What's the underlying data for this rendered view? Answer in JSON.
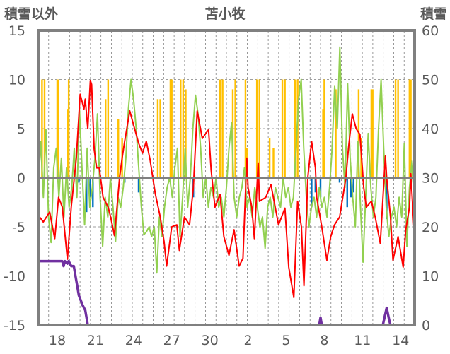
{
  "chart_data": {
    "type": "line",
    "title": "苫小牧",
    "ylabel_left": "積雪以外",
    "ylabel_right": "積雪",
    "ylim_left": [
      -15,
      15
    ],
    "ylim_right": [
      0,
      60
    ],
    "yticks_left": [
      "15",
      "10",
      "5",
      "0",
      "-5",
      "-10",
      "-15"
    ],
    "yticks_right": [
      "60",
      "50",
      "40",
      "30",
      "20",
      "10",
      "0"
    ],
    "x_unit": "days since 18th",
    "xlim": [
      -1.5,
      28.1
    ],
    "xticks": [
      {
        "x": 0,
        "label": "18"
      },
      {
        "x": 3,
        "label": "21"
      },
      {
        "x": 6,
        "label": "24"
      },
      {
        "x": 9,
        "label": "27"
      },
      {
        "x": 12,
        "label": "30"
      },
      {
        "x": 15,
        "label": "2"
      },
      {
        "x": 18,
        "label": "5"
      },
      {
        "x": 21,
        "label": "8"
      },
      {
        "x": 24,
        "label": "11"
      },
      {
        "x": 27,
        "label": "14"
      }
    ],
    "grid": true,
    "colors": {
      "red": "#ff0000",
      "green": "#92d050",
      "orange": "#ffc000",
      "blue": "#0070c0",
      "purple": "#7030a0",
      "frame": "#808080"
    },
    "series": [
      {
        "name": "red",
        "axis": "left",
        "points": [
          [
            -1.5,
            -3.8
          ],
          [
            -1.1,
            -4.5
          ],
          [
            -0.6,
            -3.5
          ],
          [
            -0.2,
            -6.2
          ],
          [
            0.1,
            -2
          ],
          [
            0.4,
            -3
          ],
          [
            0.8,
            -8.3
          ],
          [
            1.1,
            -3
          ],
          [
            1.5,
            2
          ],
          [
            1.8,
            8.5
          ],
          [
            2.1,
            7
          ],
          [
            2.2,
            8
          ],
          [
            2.4,
            5
          ],
          [
            2.6,
            9.9
          ],
          [
            2.7,
            9.5
          ],
          [
            2.9,
            2.9
          ],
          [
            3.1,
            1
          ],
          [
            3.3,
            1
          ],
          [
            3.6,
            -2
          ],
          [
            4.0,
            -3
          ],
          [
            4.2,
            -4
          ],
          [
            4.5,
            -5.9
          ],
          [
            4.7,
            -3
          ],
          [
            4.9,
            0
          ],
          [
            5.1,
            2
          ],
          [
            5.3,
            3.7
          ],
          [
            5.7,
            6.8
          ],
          [
            6.1,
            4.9
          ],
          [
            6.4,
            3.5
          ],
          [
            6.7,
            2.5
          ],
          [
            7.0,
            3.7
          ],
          [
            7.3,
            1.8
          ],
          [
            7.7,
            -1.6
          ],
          [
            8.1,
            -4
          ],
          [
            8.4,
            -6.5
          ],
          [
            8.6,
            -9
          ],
          [
            9.0,
            -5
          ],
          [
            9.4,
            -4.8
          ],
          [
            9.6,
            -7.4
          ],
          [
            10.0,
            -4
          ],
          [
            10.4,
            -4.8
          ],
          [
            10.7,
            -1
          ],
          [
            11.0,
            6.8
          ],
          [
            11.4,
            4
          ],
          [
            11.9,
            4.9
          ],
          [
            12.1,
            0.8
          ],
          [
            12.4,
            -3
          ],
          [
            12.8,
            -1.7
          ],
          [
            13.1,
            -6
          ],
          [
            13.5,
            -7.9
          ],
          [
            13.9,
            -5.3
          ],
          [
            14.3,
            -9
          ],
          [
            14.6,
            -8.2
          ],
          [
            14.9,
            2
          ],
          [
            15.0,
            -1
          ],
          [
            15.3,
            -3
          ],
          [
            15.5,
            -6.2
          ],
          [
            15.8,
            1.5
          ],
          [
            15.9,
            -2.4
          ],
          [
            16.4,
            -2
          ],
          [
            16.8,
            -0.7
          ],
          [
            17.4,
            -4.8
          ],
          [
            17.9,
            -3.1
          ],
          [
            18.2,
            -9.1
          ],
          [
            18.6,
            -12.2
          ],
          [
            18.9,
            -2.4
          ],
          [
            19.2,
            -5
          ],
          [
            19.4,
            -11
          ],
          [
            19.7,
            0
          ],
          [
            20.0,
            3.7
          ],
          [
            20.3,
            1
          ],
          [
            20.4,
            -2
          ],
          [
            20.8,
            -5
          ],
          [
            21.2,
            -8.4
          ],
          [
            21.5,
            -6
          ],
          [
            21.8,
            -4.8
          ],
          [
            22.2,
            -4
          ],
          [
            22.7,
            0
          ],
          [
            22.9,
            3
          ],
          [
            23.2,
            6.5
          ],
          [
            23.5,
            5
          ],
          [
            23.8,
            4.4
          ],
          [
            24.1,
            -1
          ],
          [
            24.3,
            -3
          ],
          [
            24.7,
            -2.4
          ],
          [
            25.0,
            -4
          ],
          [
            25.4,
            -6.7
          ],
          [
            25.8,
            2.2
          ],
          [
            25.9,
            0
          ],
          [
            26.2,
            -4
          ],
          [
            26.4,
            -8.4
          ],
          [
            26.8,
            -6
          ],
          [
            27.2,
            -9.1
          ],
          [
            27.4,
            -5.3
          ],
          [
            27.7,
            -3
          ],
          [
            27.8,
            0.4
          ],
          [
            28.0,
            -4
          ],
          [
            28.1,
            -6.2
          ]
        ]
      },
      {
        "name": "green",
        "axis": "left",
        "x_range": [
          -1.5,
          28.1
        ],
        "values": [
          -1,
          3.7,
          -2,
          4.9,
          -4,
          -6.6,
          1,
          3,
          -2,
          2,
          -4,
          1,
          -3,
          -1,
          3,
          -2,
          7,
          1,
          -4.8,
          3,
          -3,
          -1,
          2,
          6.5,
          -2,
          -7,
          -2,
          -4,
          0,
          -3,
          -6.5,
          -2,
          -3,
          -1,
          2,
          7,
          10,
          8,
          5,
          1,
          -3,
          -5.8,
          -5.5,
          -5,
          -6,
          -5,
          -9.7,
          -4,
          -6,
          -3,
          -1,
          0,
          -2,
          1,
          3,
          -6,
          -2,
          3,
          -3,
          0,
          5,
          8.4,
          6.5,
          3,
          -2,
          0,
          -3,
          -1,
          -2,
          0,
          -3,
          -2,
          -4,
          -1,
          3,
          5.6,
          -2,
          -4,
          -2,
          -1,
          1,
          -3,
          -2,
          -4,
          -1,
          -3,
          -5,
          -4,
          -7.2,
          -3,
          -2,
          -4,
          -1,
          -2,
          -3,
          0,
          -2,
          -1,
          -3,
          -2,
          3,
          8,
          10,
          3,
          -2,
          -5,
          -3,
          -2,
          -4,
          -1,
          -3,
          -2,
          -4,
          -1,
          3,
          9.3,
          5,
          13.3,
          3,
          -1,
          9.6,
          2,
          -2,
          -5,
          3.7,
          -3,
          -8.6,
          -2,
          4.5,
          -1,
          -4,
          -2,
          5,
          10,
          3,
          -3,
          -6,
          -4,
          -3,
          -5,
          -2,
          -4,
          3.5,
          -7,
          -1,
          1.7,
          -1.5
        ]
      },
      {
        "name": "orange",
        "type": "bar",
        "axis": "left",
        "points": [
          [
            -1.2,
            10
          ],
          [
            -1.0,
            10
          ],
          [
            0.0,
            10
          ],
          [
            0.1,
            10
          ],
          [
            0.8,
            7
          ],
          [
            0.9,
            10
          ],
          [
            3.8,
            8
          ],
          [
            4.0,
            10
          ],
          [
            4.8,
            6
          ],
          [
            5.1,
            4
          ],
          [
            7.9,
            8
          ],
          [
            8.1,
            8
          ],
          [
            8.9,
            10
          ],
          [
            9.0,
            10
          ],
          [
            9.7,
            10
          ],
          [
            9.9,
            10
          ],
          [
            10.1,
            9
          ],
          [
            12.8,
            10
          ],
          [
            13.0,
            10
          ],
          [
            13.8,
            9
          ],
          [
            14.0,
            10
          ],
          [
            14.8,
            10
          ],
          [
            14.9,
            3
          ],
          [
            15.7,
            10
          ],
          [
            15.9,
            10
          ],
          [
            16.7,
            4
          ],
          [
            17.0,
            3
          ],
          [
            17.7,
            10
          ],
          [
            17.9,
            10
          ],
          [
            18.7,
            10
          ],
          [
            18.9,
            10
          ],
          [
            20.9,
            7
          ],
          [
            21.0,
            10
          ],
          [
            21.9,
            9
          ],
          [
            23.7,
            9
          ],
          [
            23.9,
            4
          ],
          [
            24.7,
            9
          ],
          [
            24.8,
            9
          ],
          [
            26.6,
            10
          ],
          [
            26.8,
            10
          ],
          [
            27.7,
            10
          ],
          [
            27.8,
            10
          ]
        ]
      },
      {
        "name": "blue",
        "type": "bar",
        "axis": "left",
        "points": [
          [
            1.7,
            -0.5
          ],
          [
            2.3,
            -3.5
          ],
          [
            2.6,
            -2
          ],
          [
            2.8,
            -3
          ],
          [
            5.3,
            -0.5
          ],
          [
            6.4,
            -1.5
          ],
          [
            10.7,
            -2
          ],
          [
            20.0,
            -3
          ],
          [
            20.3,
            -1.5
          ],
          [
            20.7,
            -2
          ],
          [
            22.2,
            -0.5
          ],
          [
            22.8,
            -3
          ],
          [
            23.1,
            -2
          ],
          [
            23.3,
            -1.5
          ],
          [
            25.9,
            -4.2
          ]
        ]
      },
      {
        "name": "purple",
        "axis": "right",
        "segments": [
          [
            [
              -1.5,
              13
            ],
            [
              0.4,
              13
            ],
            [
              0.5,
              12
            ],
            [
              0.6,
              13
            ],
            [
              0.8,
              12.5
            ],
            [
              0.9,
              13
            ],
            [
              1.1,
              12
            ],
            [
              1.3,
              12
            ],
            [
              1.5,
              9
            ],
            [
              1.7,
              6
            ],
            [
              2.0,
              4
            ],
            [
              2.2,
              3
            ],
            [
              2.4,
              0
            ],
            [
              20.6,
              0
            ],
            [
              20.7,
              1.5
            ],
            [
              20.8,
              0
            ],
            [
              23.3,
              0
            ]
          ],
          [
            [
              23.8,
              0
            ],
            [
              25.6,
              0
            ],
            [
              25.9,
              3.5
            ],
            [
              26.1,
              1
            ],
            [
              26.2,
              0
            ],
            [
              28.1,
              0
            ]
          ]
        ]
      }
    ]
  }
}
